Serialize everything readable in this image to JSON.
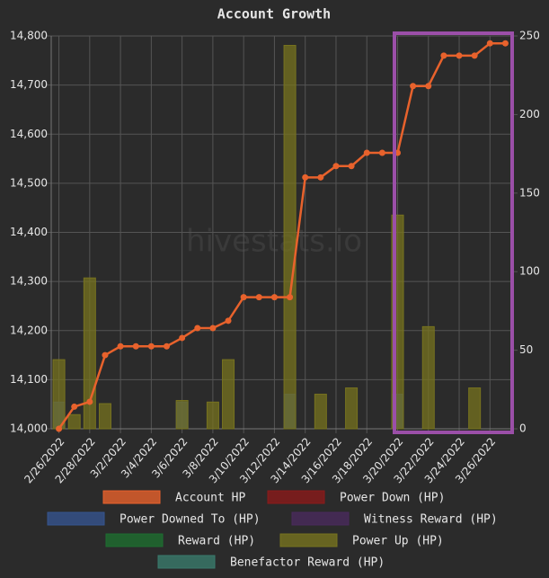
{
  "chart_data": {
    "type": "bar",
    "title": "Account Growth",
    "watermark": "hivestats.io",
    "categories": [
      "2/26/2022",
      null,
      "2/28/2022",
      null,
      "3/2/2022",
      null,
      "3/4/2022",
      null,
      "3/6/2022",
      null,
      "3/8/2022",
      null,
      "3/10/2022",
      null,
      "3/12/2022",
      null,
      "3/14/2022",
      null,
      "3/16/2022",
      null,
      "3/18/2022",
      null,
      "3/20/2022",
      null,
      "3/22/2022",
      null,
      "3/24/2022",
      null,
      "3/26/2022",
      null
    ],
    "ylim": [
      14000,
      14800
    ],
    "yticks": [
      {
        "value": 14000,
        "label": "14,000"
      },
      {
        "value": 14100,
        "label": "14,100"
      },
      {
        "value": 14200,
        "label": "14,200"
      },
      {
        "value": 14300,
        "label": "14,300"
      },
      {
        "value": 14400,
        "label": "14,400"
      },
      {
        "value": 14500,
        "label": "14,500"
      },
      {
        "value": 14600,
        "label": "14,600"
      },
      {
        "value": 14700,
        "label": "14,700"
      },
      {
        "value": 14800,
        "label": "14,800"
      }
    ],
    "y2lim": [
      0,
      250
    ],
    "y2ticks": [
      0,
      50,
      100,
      150,
      200,
      250
    ],
    "grid": true,
    "series": [
      {
        "name": "Account HP",
        "type": "line",
        "axis": "y",
        "color": "#e8622c",
        "values": [
          14000,
          14045,
          14055,
          14150,
          14168,
          14168,
          14168,
          14168,
          14185,
          14205,
          14205,
          14220,
          14268,
          14268,
          14268,
          14268,
          14512,
          14512,
          14535,
          14535,
          14562,
          14562,
          14562,
          14698,
          14698,
          14760,
          14760,
          14760,
          14785,
          14785
        ]
      },
      {
        "name": "Power Down (HP)",
        "type": "bar",
        "axis": "y2",
        "color": "#8b1a1a",
        "values": [
          0,
          0,
          0,
          0,
          0,
          0,
          0,
          0,
          0,
          0,
          0,
          0,
          0,
          0,
          0,
          0,
          0,
          0,
          0,
          0,
          0,
          0,
          0,
          0,
          0,
          0,
          0,
          0,
          0,
          0
        ]
      },
      {
        "name": "Power Downed To (HP)",
        "type": "bar",
        "axis": "y2",
        "color": "#36548f",
        "values": [
          17,
          0,
          0,
          0,
          0,
          0,
          0,
          0,
          17,
          0,
          0,
          0,
          0,
          0,
          0,
          22,
          0,
          0,
          0,
          0,
          0,
          0,
          22,
          0,
          0,
          0,
          0,
          0,
          0,
          0
        ]
      },
      {
        "name": "Witness Reward (HP)",
        "type": "bar",
        "axis": "y2",
        "color": "#4a2a5c",
        "values": [
          0,
          0,
          0,
          0,
          0,
          0,
          0,
          0,
          0,
          0,
          0,
          0,
          0,
          0,
          0,
          0,
          0,
          0,
          0,
          0,
          0,
          0,
          0,
          0,
          0,
          0,
          0,
          0,
          0,
          0
        ]
      },
      {
        "name": "Reward (HP)",
        "type": "bar",
        "axis": "y2",
        "color": "#1e6e30",
        "values": [
          0,
          0,
          0,
          0,
          0,
          0,
          0,
          0,
          0,
          0,
          0,
          0,
          0,
          0,
          0,
          0,
          0,
          0,
          0,
          0,
          0,
          0,
          0,
          0,
          0,
          0,
          0,
          0,
          0,
          0
        ]
      },
      {
        "name": "Power Up (HP)",
        "type": "bar",
        "axis": "y2",
        "color": "#77731f",
        "values": [
          44,
          9,
          96,
          16,
          0,
          0,
          0,
          0,
          18,
          0,
          17,
          44,
          0,
          0,
          0,
          244,
          0,
          22,
          0,
          26,
          0,
          0,
          136,
          0,
          65,
          0,
          0,
          26,
          0,
          0
        ]
      },
      {
        "name": "Benefactor Reward (HP)",
        "type": "bar",
        "axis": "y2",
        "color": "#3a7a6c",
        "values": [
          0,
          0,
          0,
          0,
          0,
          0,
          0,
          0,
          0,
          0,
          0,
          0,
          0,
          0,
          0,
          0,
          0,
          0,
          0,
          0,
          0,
          0,
          0,
          0,
          0,
          0,
          0,
          0,
          0,
          0
        ]
      }
    ]
  }
}
